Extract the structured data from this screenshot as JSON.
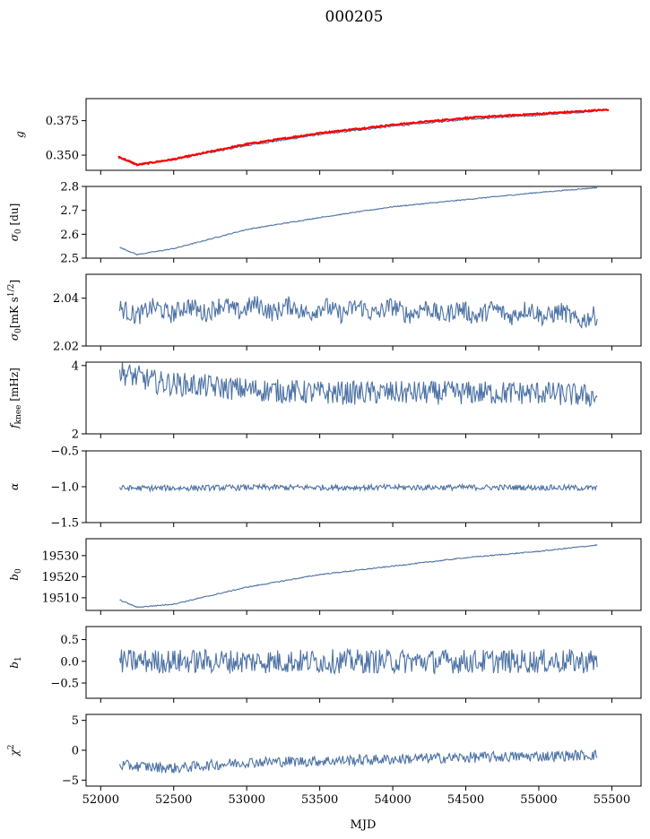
{
  "figure": {
    "title": "000205",
    "xlabel": "MJD",
    "xlim": [
      51900,
      55700
    ],
    "xticks": [
      "52000",
      "52500",
      "53000",
      "53500",
      "54000",
      "54500",
      "55000",
      "55500"
    ],
    "series_color": "#4c72a4",
    "overlay_color": "#ff0000"
  },
  "chart_data": [
    {
      "type": "line",
      "ylabel": "g",
      "ylim": [
        0.339,
        0.391
      ],
      "yticks": [
        "0.350",
        "0.375"
      ],
      "series": [
        {
          "x": [
            52120,
            52250,
            52500,
            53000,
            53500,
            54000,
            54500,
            55000,
            55400
          ],
          "y": [
            0.348,
            0.343,
            0.347,
            0.357,
            0.365,
            0.371,
            0.376,
            0.379,
            0.382
          ]
        },
        {
          "x": [
            52120,
            52250,
            52500,
            53000,
            53500,
            54000,
            54500,
            55000,
            55480
          ],
          "y": [
            0.349,
            0.343,
            0.347,
            0.358,
            0.366,
            0.372,
            0.377,
            0.38,
            0.383
          ]
        }
      ]
    },
    {
      "type": "line",
      "ylabel": "σ0 [du]",
      "ylim": [
        2.5,
        2.8
      ],
      "yticks": [
        "2.5",
        "2.6",
        "2.7",
        "2.8"
      ],
      "series": [
        {
          "x": [
            52130,
            52250,
            52500,
            53000,
            53500,
            54000,
            54500,
            55000,
            55400
          ],
          "y": [
            2.545,
            2.515,
            2.54,
            2.62,
            2.67,
            2.715,
            2.745,
            2.775,
            2.795
          ]
        }
      ]
    },
    {
      "type": "line",
      "ylabel": "σ0[mK s^1/2]",
      "ylim": [
        2.02,
        2.05
      ],
      "yticks": [
        "2.02",
        "2.04"
      ],
      "series": [
        {
          "x": [
            52130,
            52500,
            53000,
            53500,
            54000,
            54500,
            55000,
            55400
          ],
          "y": [
            2.034,
            2.035,
            2.036,
            2.035,
            2.035,
            2.034,
            2.034,
            2.031
          ]
        }
      ]
    },
    {
      "type": "line",
      "ylabel": "f_knee [mHz]",
      "ylim": [
        2,
        4.1
      ],
      "yticks": [
        "2",
        "4"
      ],
      "series": [
        {
          "x": [
            52130,
            52400,
            53000,
            53500,
            54000,
            54500,
            55000,
            55400
          ],
          "y": [
            3.8,
            3.5,
            3.3,
            3.2,
            3.2,
            3.2,
            3.2,
            3.1
          ]
        }
      ]
    },
    {
      "type": "line",
      "ylabel": "α",
      "ylim": [
        -1.5,
        -0.5
      ],
      "yticks": [
        "−1.5",
        "−1.0",
        "−0.5"
      ],
      "series": [
        {
          "x": [
            52130,
            52500,
            53000,
            53500,
            54000,
            54500,
            55000,
            55400
          ],
          "y": [
            -1.02,
            -1.02,
            -1.01,
            -1.01,
            -1.01,
            -1.01,
            -1.01,
            -1.02
          ]
        }
      ]
    },
    {
      "type": "line",
      "ylabel": "b0",
      "ylim": [
        19504,
        19538
      ],
      "yticks": [
        "19510",
        "19520",
        "19530"
      ],
      "series": [
        {
          "x": [
            52130,
            52250,
            52500,
            53000,
            53500,
            54000,
            54500,
            55000,
            55400
          ],
          "y": [
            19509,
            19505.5,
            19507,
            19515,
            19521,
            19525,
            19529,
            19532,
            19535
          ]
        }
      ]
    },
    {
      "type": "line",
      "ylabel": "b1",
      "ylim": [
        -0.85,
        0.8
      ],
      "yticks": [
        "−0.5",
        "0.0",
        "0.5"
      ],
      "series": [
        {
          "x": [
            52130,
            52500,
            53000,
            53500,
            54000,
            54500,
            55000,
            55400
          ],
          "y": [
            0.0,
            0.0,
            0.0,
            0.0,
            0.0,
            0.0,
            0.0,
            0.0
          ]
        }
      ]
    },
    {
      "type": "line",
      "ylabel": "χ²",
      "ylim": [
        -6,
        6
      ],
      "yticks": [
        "−5",
        "0",
        "5"
      ],
      "series": [
        {
          "x": [
            52130,
            52500,
            53000,
            53500,
            54000,
            54500,
            55000,
            55400
          ],
          "y": [
            -2.5,
            -3.0,
            -2.0,
            -1.8,
            -1.5,
            -1.2,
            -1.0,
            -0.8
          ]
        }
      ]
    }
  ]
}
